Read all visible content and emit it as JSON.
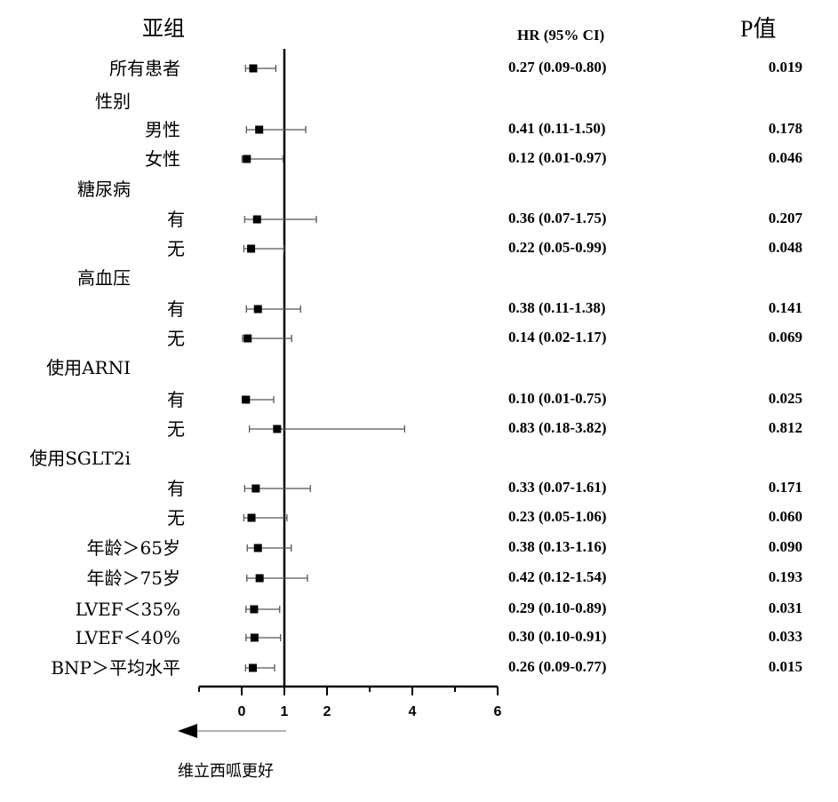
{
  "chart_data": {
    "type": "forest",
    "headers": {
      "subgroup": "亚组",
      "hr": "HR (95% CI)",
      "p": "P值"
    },
    "favor_label": "维立西呱更好",
    "xlim": [
      -1,
      6
    ],
    "x_ticks": [
      0,
      1,
      2,
      4,
      6
    ],
    "reference_line": 1,
    "rows": [
      {
        "label": "所有患者",
        "level": 1,
        "hr": 0.27,
        "lo": 0.09,
        "hi": 0.8,
        "hr_text": "0.27 (0.09-0.80)",
        "p": "0.019"
      },
      {
        "label": "性别",
        "level": 0
      },
      {
        "label": "男性",
        "level": 2,
        "hr": 0.41,
        "lo": 0.11,
        "hi": 1.5,
        "hr_text": "0.41 (0.11-1.50)",
        "p": "0.178"
      },
      {
        "label": "女性",
        "level": 2,
        "hr": 0.12,
        "lo": 0.01,
        "hi": 0.97,
        "hr_text": "0.12 (0.01-0.97)",
        "p": "0.046"
      },
      {
        "label": "糖尿病",
        "level": 0
      },
      {
        "label": "有",
        "level": 3,
        "hr": 0.36,
        "lo": 0.07,
        "hi": 1.75,
        "hr_text": "0.36 (0.07-1.75)",
        "p": "0.207"
      },
      {
        "label": "无",
        "level": 3,
        "hr": 0.22,
        "lo": 0.05,
        "hi": 0.99,
        "hr_text": "0.22 (0.05-0.99)",
        "p": "0.048"
      },
      {
        "label": "高血压",
        "level": 0
      },
      {
        "label": "有",
        "level": 3,
        "hr": 0.38,
        "lo": 0.11,
        "hi": 1.38,
        "hr_text": "0.38 (0.11-1.38)",
        "p": "0.141"
      },
      {
        "label": "无",
        "level": 3,
        "hr": 0.14,
        "lo": 0.02,
        "hi": 1.17,
        "hr_text": "0.14 (0.02-1.17)",
        "p": "0.069"
      },
      {
        "label": "使用ARNI",
        "level": 0
      },
      {
        "label": "有",
        "level": 3,
        "hr": 0.1,
        "lo": 0.01,
        "hi": 0.75,
        "hr_text": "0.10 (0.01-0.75)",
        "p": "0.025"
      },
      {
        "label": "无",
        "level": 3,
        "hr": 0.83,
        "lo": 0.18,
        "hi": 3.82,
        "hr_text": "0.83 (0.18-3.82)",
        "p": "0.812"
      },
      {
        "label": "使用SGLT2i",
        "level": 0
      },
      {
        "label": "有",
        "level": 3,
        "hr": 0.33,
        "lo": 0.07,
        "hi": 1.61,
        "hr_text": "0.33 (0.07-1.61)",
        "p": "0.171"
      },
      {
        "label": "无",
        "level": 3,
        "hr": 0.23,
        "lo": 0.05,
        "hi": 1.06,
        "hr_text": "0.23 (0.05-1.06)",
        "p": "0.060"
      },
      {
        "label": "年龄＞65岁",
        "level": 1,
        "hr": 0.38,
        "lo": 0.13,
        "hi": 1.16,
        "hr_text": "0.38 (0.13-1.16)",
        "p": "0.090"
      },
      {
        "label": "年龄＞75岁",
        "level": 1,
        "hr": 0.42,
        "lo": 0.12,
        "hi": 1.54,
        "hr_text": "0.42 (0.12-1.54)",
        "p": "0.193"
      },
      {
        "label": "LVEF＜35%",
        "level": 1,
        "hr": 0.29,
        "lo": 0.1,
        "hi": 0.89,
        "hr_text": "0.29 (0.10-0.89)",
        "p": "0.031"
      },
      {
        "label": "LVEF＜40%",
        "level": 1,
        "hr": 0.3,
        "lo": 0.1,
        "hi": 0.91,
        "hr_text": "0.30 (0.10-0.91)",
        "p": "0.033"
      },
      {
        "label": "BNP＞平均水平",
        "level": 1,
        "hr": 0.26,
        "lo": 0.09,
        "hi": 0.77,
        "hr_text": "0.26 (0.09-0.77)",
        "p": "0.015"
      }
    ]
  }
}
